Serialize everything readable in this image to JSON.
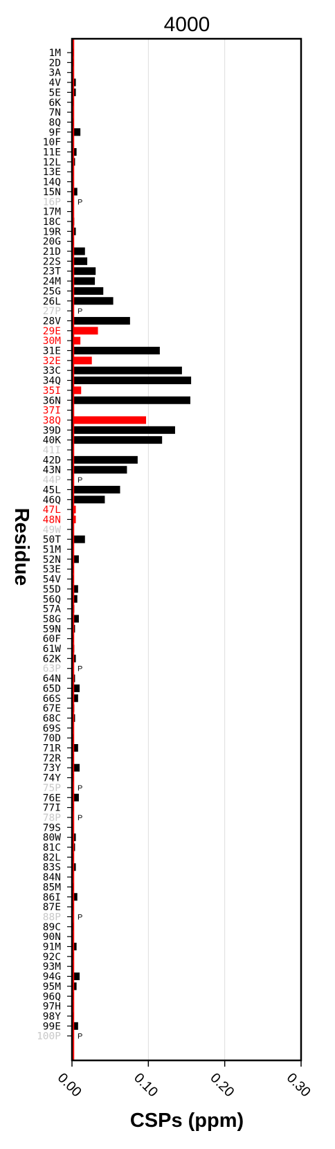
{
  "chart_data": {
    "type": "bar",
    "orientation": "horizontal",
    "title": "4000",
    "xlabel": "CSPs (ppm)",
    "ylabel": "Residue",
    "xlim": [
      0,
      0.3
    ],
    "xticks": [
      "0.00",
      "0.10",
      "0.20",
      "0.30"
    ],
    "xtick_values": [
      0,
      0.1,
      0.2,
      0.3
    ],
    "grid": "vertical gridlines at ticks",
    "reference_line": {
      "x": 0.002,
      "color": "#ff0000"
    },
    "colors": {
      "normal": "#000000",
      "highlight": "#ff0000",
      "proline": "#c8c8c8"
    },
    "proline_marker": "P",
    "categories": [
      "1M",
      "2D",
      "3A",
      "4V",
      "5E",
      "6K",
      "7N",
      "8Q",
      "9F",
      "10F",
      "11E",
      "12L",
      "13E",
      "14Q",
      "15N",
      "16P",
      "17M",
      "18C",
      "19R",
      "20G",
      "21D",
      "22S",
      "23T",
      "24M",
      "25G",
      "26L",
      "27P",
      "28V",
      "29E",
      "30M",
      "31E",
      "32E",
      "33C",
      "34Q",
      "35I",
      "36N",
      "37I",
      "38Q",
      "39D",
      "40K",
      "41I",
      "42D",
      "43N",
      "44P",
      "45L",
      "46Q",
      "47L",
      "48N",
      "49W",
      "50T",
      "51M",
      "52N",
      "53E",
      "54V",
      "55D",
      "56Q",
      "57A",
      "58G",
      "59N",
      "60F",
      "61W",
      "62K",
      "63P",
      "64N",
      "65D",
      "66S",
      "67E",
      "68C",
      "69S",
      "70D",
      "71R",
      "72R",
      "73Y",
      "74Y",
      "75P",
      "76E",
      "77I",
      "78P",
      "79S",
      "80W",
      "81C",
      "82L",
      "83S",
      "84N",
      "85M",
      "86I",
      "87E",
      "88P",
      "89C",
      "90N",
      "91M",
      "92C",
      "93M",
      "94G",
      "95M",
      "96Q",
      "97H",
      "98Y",
      "99E",
      "100P"
    ],
    "values": [
      0.002,
      0.002,
      0.001,
      0.005,
      0.005,
      0.002,
      0.001,
      0.002,
      0.011,
      0.001,
      0.006,
      0.004,
      0.001,
      0.001,
      0.007,
      0,
      0.001,
      0.003,
      0.005,
      0.002,
      0.017,
      0.02,
      0.031,
      0.03,
      0.041,
      0.054,
      0,
      0.076,
      0.034,
      0.011,
      0.115,
      0.026,
      0.144,
      0.156,
      0.012,
      0.155,
      0,
      0.097,
      0.135,
      0.118,
      0,
      0.086,
      0.072,
      0,
      0.063,
      0.043,
      0.005,
      0.005,
      0,
      0.017,
      0.001,
      0.009,
      0.002,
      0.002,
      0.008,
      0.007,
      0.003,
      0.009,
      0.004,
      0.002,
      0.003,
      0.005,
      0,
      0.004,
      0.01,
      0.008,
      0.003,
      0.004,
      0.001,
      0.002,
      0.008,
      0.002,
      0.01,
      0.002,
      0,
      0.009,
      0.002,
      0,
      0.001,
      0.005,
      0.004,
      0.002,
      0.005,
      0.001,
      0.002,
      0.007,
      0.002,
      0,
      0.002,
      0.001,
      0.006,
      0.002,
      0.001,
      0.01,
      0.006,
      0.002,
      0.001,
      0.002,
      0.008,
      0
    ],
    "highlighted": [
      "29E",
      "30M",
      "32E",
      "35I",
      "37I",
      "38Q",
      "47L",
      "48N"
    ],
    "proline_or_missing": [
      "16P",
      "27P",
      "41I",
      "44P",
      "49W",
      "63P",
      "75P",
      "78P",
      "88P",
      "100P"
    ],
    "proline_marked": [
      "16P",
      "27P",
      "44P",
      "63P",
      "75P",
      "78P",
      "88P",
      "100P"
    ]
  }
}
